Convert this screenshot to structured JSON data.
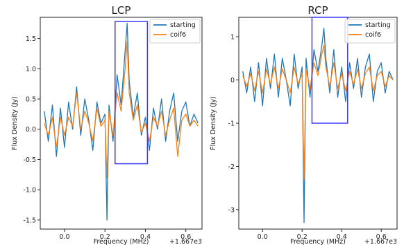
{
  "chart_data": [
    {
      "type": "line",
      "title": "LCP",
      "xlabel": "Frequency (MHz)",
      "ylabel": "Flux Density (Jy)",
      "x_offset_label": "+1.667e3",
      "xlim": [
        -0.12,
        0.68
      ],
      "ylim": [
        -1.65,
        1.85
      ],
      "xticks": [
        0.0,
        0.2,
        0.4,
        0.6
      ],
      "xtick_labels": [
        "0.0",
        "0.2",
        "0.4",
        "0.6"
      ],
      "yticks": [
        -1.5,
        -1.0,
        -0.5,
        0.0,
        0.5,
        1.0,
        1.5
      ],
      "ytick_labels": [
        "-1.5",
        "-1.0",
        "-0.5",
        "0.0",
        "0.5",
        "1.0",
        "1.5"
      ],
      "legend_position": "top-right",
      "highlight_box": {
        "x0": 0.25,
        "x1": 0.41,
        "y0": -0.57,
        "y1": 1.78,
        "color": "#3b3bff"
      },
      "series": [
        {
          "name": "starting",
          "color": "#1f77b4",
          "x": [
            -0.1,
            -0.08,
            -0.06,
            -0.04,
            -0.02,
            0.0,
            0.02,
            0.04,
            0.06,
            0.08,
            0.1,
            0.12,
            0.14,
            0.16,
            0.18,
            0.2,
            0.21,
            0.22,
            0.24,
            0.26,
            0.28,
            0.3,
            0.31,
            0.32,
            0.34,
            0.36,
            0.38,
            0.4,
            0.42,
            0.44,
            0.46,
            0.48,
            0.5,
            0.52,
            0.54,
            0.56,
            0.58,
            0.6,
            0.62,
            0.64,
            0.66
          ],
          "y": [
            0.3,
            -0.2,
            0.4,
            -0.45,
            0.35,
            -0.3,
            0.45,
            0.0,
            0.7,
            -0.1,
            0.5,
            0.15,
            -0.35,
            0.45,
            0.1,
            0.25,
            -1.5,
            0.4,
            -0.2,
            0.9,
            0.4,
            1.3,
            1.75,
            0.8,
            0.2,
            0.6,
            -0.1,
            0.2,
            -0.35,
            0.35,
            0.0,
            0.5,
            -0.2,
            0.3,
            0.6,
            -0.2,
            0.3,
            0.45,
            0.05,
            0.25,
            0.1
          ]
        },
        {
          "name": "coif6",
          "color": "#ff7f0e",
          "x": [
            -0.1,
            -0.08,
            -0.06,
            -0.04,
            -0.02,
            0.0,
            0.02,
            0.04,
            0.06,
            0.08,
            0.1,
            0.12,
            0.14,
            0.16,
            0.18,
            0.2,
            0.21,
            0.22,
            0.24,
            0.26,
            0.28,
            0.3,
            0.31,
            0.32,
            0.34,
            0.36,
            0.38,
            0.4,
            0.42,
            0.44,
            0.46,
            0.48,
            0.5,
            0.52,
            0.54,
            0.56,
            0.58,
            0.6,
            0.62,
            0.64,
            0.66
          ],
          "y": [
            0.1,
            -0.1,
            0.2,
            -0.3,
            0.2,
            -0.1,
            0.2,
            0.05,
            0.6,
            0.0,
            0.3,
            0.1,
            -0.2,
            0.35,
            0.05,
            0.15,
            -0.8,
            0.3,
            -0.1,
            0.6,
            0.3,
            1.0,
            1.45,
            0.6,
            0.15,
            0.4,
            -0.05,
            0.1,
            -0.2,
            0.2,
            0.05,
            0.3,
            -0.1,
            0.15,
            0.35,
            -0.45,
            0.15,
            0.25,
            0.05,
            0.15,
            0.05
          ]
        }
      ]
    },
    {
      "type": "line",
      "title": "RCP",
      "xlabel": "Frequency (MHz)",
      "ylabel": "Flux Density (Jy)",
      "x_offset_label": "+1.667e3",
      "xlim": [
        -0.12,
        0.68
      ],
      "ylim": [
        -3.45,
        1.45
      ],
      "xticks": [
        0.0,
        0.2,
        0.4,
        0.6
      ],
      "xtick_labels": [
        "0.0",
        "0.2",
        "0.4",
        "0.6"
      ],
      "yticks": [
        -3,
        -2,
        -1,
        0,
        1
      ],
      "ytick_labels": [
        "-3",
        "-2",
        "-1",
        "0",
        "1"
      ],
      "legend_position": "top-right",
      "highlight_box": {
        "x0": 0.25,
        "x1": 0.43,
        "y0": -1.0,
        "y1": 1.5,
        "color": "#3b3bff"
      },
      "series": [
        {
          "name": "starting",
          "color": "#1f77b4",
          "x": [
            -0.1,
            -0.08,
            -0.06,
            -0.04,
            -0.02,
            0.0,
            0.02,
            0.04,
            0.06,
            0.08,
            0.1,
            0.12,
            0.14,
            0.16,
            0.18,
            0.2,
            0.21,
            0.22,
            0.24,
            0.26,
            0.28,
            0.3,
            0.31,
            0.32,
            0.34,
            0.36,
            0.38,
            0.4,
            0.42,
            0.44,
            0.46,
            0.48,
            0.5,
            0.52,
            0.54,
            0.56,
            0.58,
            0.6,
            0.62,
            0.64,
            0.66
          ],
          "y": [
            0.2,
            -0.3,
            0.3,
            -0.5,
            0.4,
            -0.6,
            0.5,
            -0.2,
            0.6,
            -0.4,
            0.5,
            0.0,
            -0.6,
            0.6,
            -0.2,
            0.3,
            -3.3,
            0.5,
            -0.4,
            0.7,
            0.2,
            0.8,
            1.2,
            0.5,
            -0.3,
            0.7,
            -0.4,
            0.3,
            -0.5,
            0.4,
            -0.2,
            0.5,
            -0.4,
            0.3,
            0.6,
            -0.5,
            0.2,
            0.4,
            -0.3,
            0.2,
            0.0
          ]
        },
        {
          "name": "coif6",
          "color": "#ff7f0e",
          "x": [
            -0.1,
            -0.08,
            -0.06,
            -0.04,
            -0.02,
            0.0,
            0.02,
            0.04,
            0.06,
            0.08,
            0.1,
            0.12,
            0.14,
            0.16,
            0.18,
            0.2,
            0.21,
            0.22,
            0.24,
            0.26,
            0.28,
            0.3,
            0.31,
            0.32,
            0.34,
            0.36,
            0.38,
            0.4,
            0.42,
            0.44,
            0.46,
            0.48,
            0.5,
            0.52,
            0.54,
            0.56,
            0.58,
            0.6,
            0.62,
            0.64,
            0.66
          ],
          "y": [
            0.1,
            -0.15,
            0.15,
            -0.25,
            0.2,
            -0.3,
            0.25,
            -0.1,
            0.3,
            -0.2,
            0.25,
            0.0,
            -0.3,
            0.3,
            -0.1,
            0.15,
            -2.3,
            0.25,
            -0.2,
            0.4,
            0.1,
            0.6,
            0.8,
            0.3,
            -0.15,
            0.4,
            -0.2,
            0.15,
            -0.25,
            0.2,
            -0.1,
            0.25,
            -0.2,
            0.15,
            0.3,
            -0.25,
            0.1,
            0.2,
            -0.15,
            0.1,
            0.0
          ]
        }
      ]
    }
  ]
}
